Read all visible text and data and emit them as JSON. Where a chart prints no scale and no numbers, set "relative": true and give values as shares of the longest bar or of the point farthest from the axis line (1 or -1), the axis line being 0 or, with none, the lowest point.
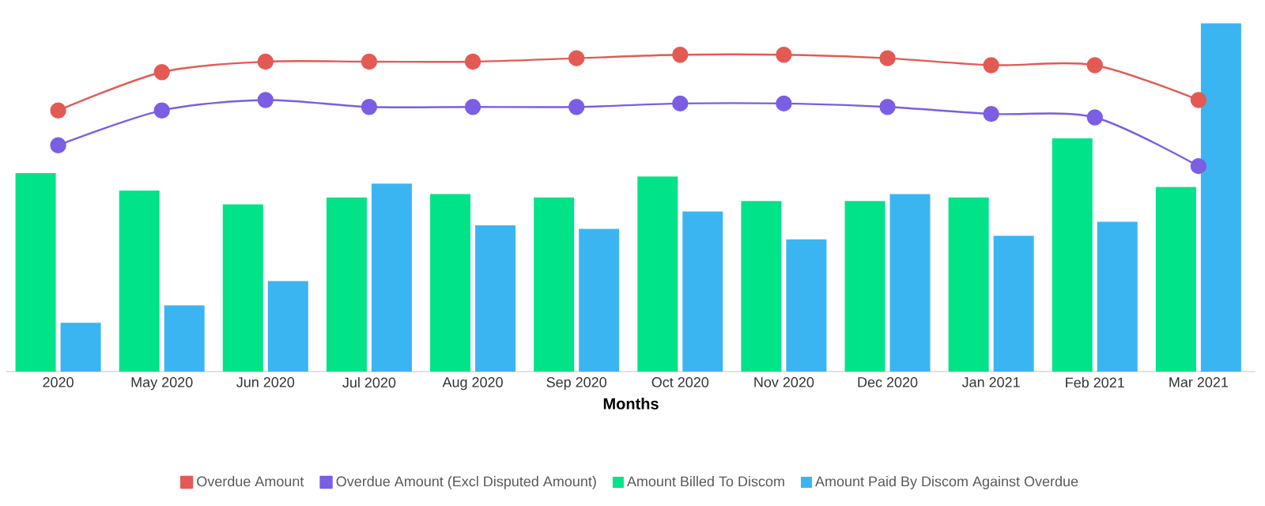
{
  "chart_data": {
    "type": "bar",
    "relative": true,
    "xlabel": "Months",
    "legend": "bottom",
    "marker": "circle",
    "categories": [
      "2020",
      "May 2020",
      "Jun 2020",
      "Jul 2020",
      "Aug 2020",
      "Sep 2020",
      "Oct 2020",
      "Nov 2020",
      "Dec 2020",
      "Jan 2021",
      "Feb 2021",
      "Mar 2021"
    ],
    "series": [
      {
        "name": "Overdue Amount",
        "type": "line",
        "color": "#e35a55",
        "values": [
          0.75,
          0.86,
          0.89,
          0.89,
          0.89,
          0.9,
          0.91,
          0.91,
          0.9,
          0.88,
          0.88,
          0.78
        ]
      },
      {
        "name": "Overdue Amount (Excl Disputed Amount)",
        "type": "line",
        "color": "#7b5ee3",
        "values": [
          0.65,
          0.75,
          0.78,
          0.76,
          0.76,
          0.76,
          0.77,
          0.77,
          0.76,
          0.74,
          0.73,
          0.59
        ]
      },
      {
        "name": "Amount Billed To Discom",
        "color": "#00e388",
        "values": [
          0.57,
          0.52,
          0.48,
          0.5,
          0.51,
          0.5,
          0.56,
          0.49,
          0.49,
          0.5,
          0.67,
          0.53
        ]
      },
      {
        "name": "Amount Paid By Discom Against Overdue",
        "color": "#3bb5f2",
        "values": [
          0.14,
          0.19,
          0.26,
          0.54,
          0.42,
          0.41,
          0.46,
          0.38,
          0.51,
          0.39,
          0.43,
          1
        ]
      }
    ]
  }
}
